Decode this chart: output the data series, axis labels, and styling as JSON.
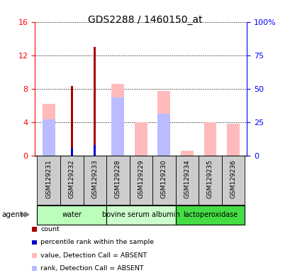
{
  "title": "GDS2288 / 1460150_at",
  "samples": [
    "GSM129231",
    "GSM129232",
    "GSM129233",
    "GSM129228",
    "GSM129229",
    "GSM129230",
    "GSM129234",
    "GSM129235",
    "GSM129236"
  ],
  "groups": [
    {
      "label": "water",
      "color": "#bbffbb",
      "samples": [
        0,
        1,
        2
      ]
    },
    {
      "label": "bovine serum albumin",
      "color": "#ccffcc",
      "samples": [
        3,
        4,
        5
      ]
    },
    {
      "label": "lactoperoxidase",
      "color": "#44dd44",
      "samples": [
        6,
        7,
        8
      ]
    }
  ],
  "count_values": [
    0.0,
    8.3,
    13.0,
    0.0,
    0.0,
    0.0,
    0.0,
    0.0,
    0.0
  ],
  "percentile_values": [
    0.0,
    6.0,
    8.0,
    0.0,
    0.0,
    0.0,
    0.0,
    0.0,
    0.0
  ],
  "absent_value": [
    6.2,
    0.0,
    0.0,
    8.6,
    4.0,
    7.7,
    0.55,
    4.0,
    3.8
  ],
  "absent_rank": [
    4.3,
    0.0,
    0.0,
    7.0,
    0.0,
    5.0,
    0.0,
    0.0,
    0.0
  ],
  "ylim_left": [
    0,
    16
  ],
  "ylim_right": [
    0,
    100
  ],
  "yticks_left": [
    0,
    4,
    8,
    12,
    16
  ],
  "yticks_right": [
    0,
    25,
    50,
    75,
    100
  ],
  "color_count": "#aa0000",
  "color_percentile": "#0000cc",
  "color_absent_value": "#ffbbbb",
  "color_absent_rank": "#bbbbff",
  "background_plot": "#ffffff",
  "background_sample": "#cccccc"
}
